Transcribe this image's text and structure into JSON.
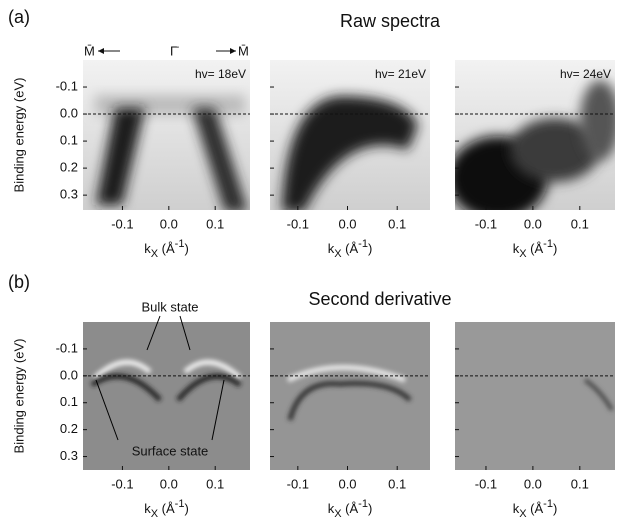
{
  "figure": {
    "panels": [
      {
        "label": "(a)",
        "title": "Raw spectra"
      },
      {
        "label": "(b)",
        "title": "Second derivative"
      }
    ],
    "k_points": [
      "M̄",
      "Γ̄",
      "M̄"
    ],
    "annotations": [
      "Bulk state",
      "Surface state"
    ]
  },
  "chart_data": [
    {
      "type": "heatmap",
      "annotation": "hv= 18eV",
      "ylabel": "Binding energy (eV)",
      "xlabel": [
        "k",
        "X",
        " (Å",
        "-1",
        ")"
      ],
      "xlim": [
        -0.185,
        0.175
      ],
      "ylim": [
        -0.2,
        0.355
      ],
      "xticks": [
        -0.1,
        {
          "value": 0,
          "label": "0.0"
        },
        0.1
      ],
      "yticks": [
        -0.1,
        {
          "value": 0,
          "label": "0.0"
        },
        0.1,
        0.2,
        0.3
      ],
      "ref_line": 0
    },
    {
      "type": "heatmap",
      "annotation": "hv= 21eV",
      "xlabel": [
        "k",
        "X",
        " (Å",
        "-1",
        ")"
      ],
      "xlim": [
        -0.156,
        0.166
      ],
      "ylim": [
        -0.2,
        0.355
      ],
      "xticks": [
        -0.1,
        {
          "value": 0,
          "label": "0.0"
        },
        0.1
      ],
      "yticks": [
        -0.1,
        {
          "value": 0,
          "label": "0.0"
        },
        0.1,
        0.2,
        0.3
      ],
      "ref_line": 0
    },
    {
      "type": "heatmap",
      "annotation": "hv= 24eV",
      "xlabel": [
        "k",
        "X",
        " (Å",
        "-1",
        ")"
      ],
      "xlim": [
        -0.166,
        0.175
      ],
      "ylim": [
        -0.2,
        0.355
      ],
      "xticks": [
        -0.1,
        {
          "value": 0,
          "label": "0.0"
        },
        0.1
      ],
      "yticks": [
        -0.1,
        {
          "value": 0,
          "label": "0.0"
        },
        0.1,
        0.2,
        0.3
      ],
      "ref_line": 0
    },
    {
      "type": "heatmap",
      "ylabel": "Binding energy (eV)",
      "xlabel": [
        "k",
        "X",
        " (Å",
        "-1",
        ")"
      ],
      "xlim": [
        -0.185,
        0.175
      ],
      "ylim": [
        -0.2,
        0.35
      ],
      "xticks": [
        -0.1,
        {
          "value": 0,
          "label": "0.0"
        },
        0.1
      ],
      "yticks": [
        -0.1,
        {
          "value": 0,
          "label": "0.0"
        },
        0.1,
        0.2,
        0.3
      ],
      "ref_line": 0
    },
    {
      "type": "heatmap",
      "xlabel": [
        "k",
        "X",
        " (Å",
        "-1",
        ")"
      ],
      "xlim": [
        -0.156,
        0.166
      ],
      "ylim": [
        -0.2,
        0.35
      ],
      "xticks": [
        -0.1,
        {
          "value": 0,
          "label": "0.0"
        },
        0.1
      ],
      "yticks": [
        -0.1,
        {
          "value": 0,
          "label": "0.0"
        },
        0.1,
        0.2,
        0.3
      ],
      "ref_line": 0
    },
    {
      "type": "heatmap",
      "xlabel": [
        "k",
        "X",
        " (Å",
        "-1",
        ")"
      ],
      "xlim": [
        -0.166,
        0.175
      ],
      "ylim": [
        -0.2,
        0.35
      ],
      "xticks": [
        -0.1,
        {
          "value": 0,
          "label": "0.0"
        },
        0.1
      ],
      "yticks": [
        -0.1,
        {
          "value": 0,
          "label": "0.0"
        },
        0.1,
        0.2,
        0.3
      ],
      "ref_line": 0
    }
  ]
}
